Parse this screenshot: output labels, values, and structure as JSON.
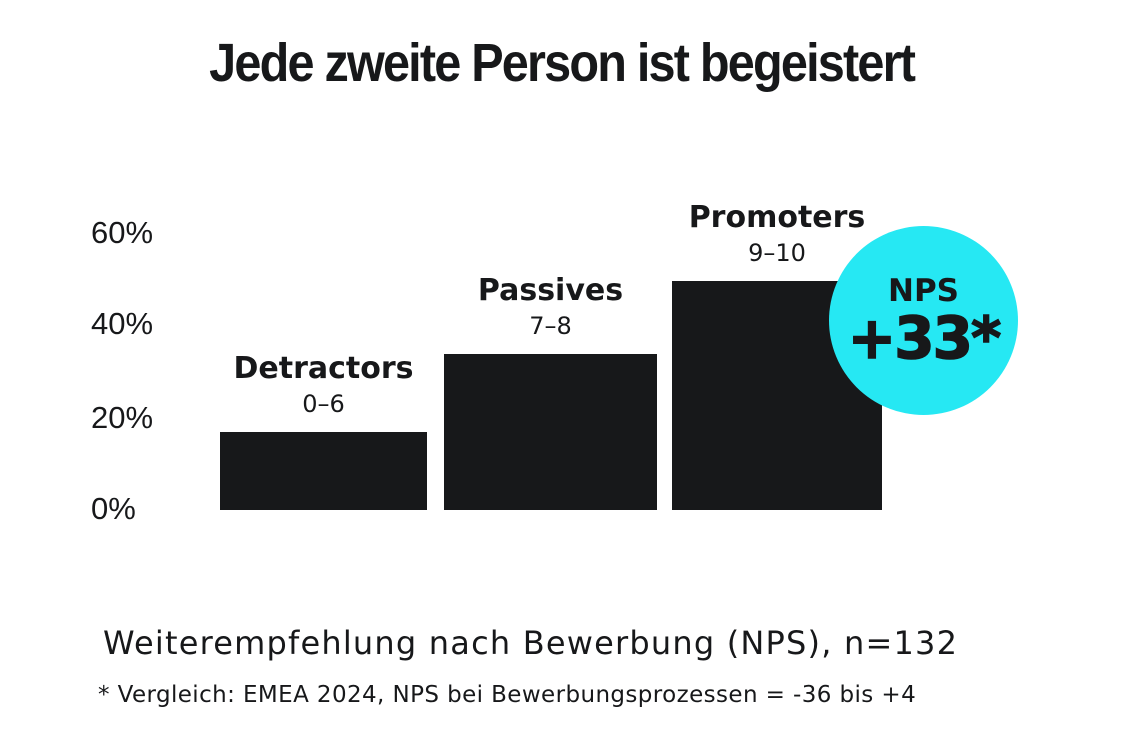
{
  "chart_data": {
    "type": "bar",
    "title": "Jede zweite Person ist begeistert",
    "subtitle": "Weiterempfehlung nach Bewerbung (NPS), n=132",
    "footnote": "* Vergleich: EMEA 2024, NPS bei Bewerbungsprozessen = -36 bis +4",
    "categories": [
      "Detractors",
      "Passives",
      "Promoters"
    ],
    "category_sublabels": [
      "0–6",
      "7–8",
      "9–10"
    ],
    "values": [
      17,
      34,
      50
    ],
    "value_unit": "percent",
    "y_ticks": [
      "60%",
      "40%",
      "20%",
      "0%"
    ],
    "ylim": [
      0,
      60
    ],
    "grid": false,
    "legend": "none",
    "annotation_badge": {
      "label": "NPS",
      "value": "+33*"
    }
  },
  "colors": {
    "ink": "#17181a",
    "bar": "#17181a",
    "badge_cyan": "#26e8f3",
    "background": "#ffffff"
  }
}
